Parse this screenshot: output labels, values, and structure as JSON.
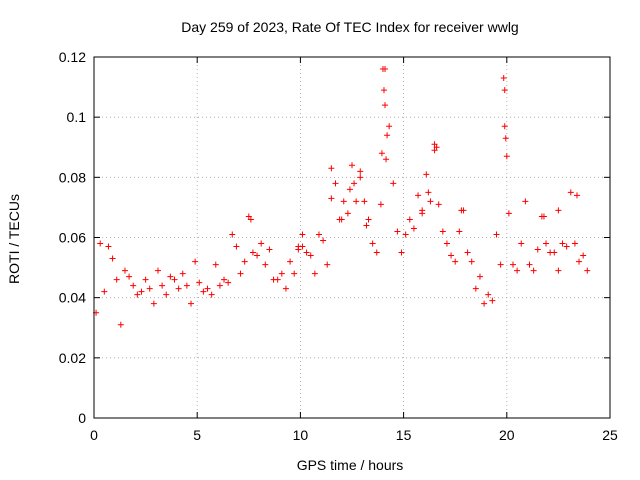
{
  "chart_data": {
    "type": "scatter",
    "title": "Day 259 of 2023, Rate Of TEC Index for receiver wwlg",
    "xlabel": "GPS time / hours",
    "ylabel": "ROTI / TECUs",
    "xlim": [
      0,
      25
    ],
    "ylim": [
      0,
      0.12
    ],
    "x_ticks": [
      0,
      5,
      10,
      15,
      20,
      25
    ],
    "x_tick_labels": [
      "0",
      "5",
      "10",
      "15",
      "20",
      "25"
    ],
    "y_ticks": [
      0,
      0.02,
      0.04,
      0.06,
      0.08,
      0.1,
      0.12
    ],
    "y_tick_labels": [
      "0",
      "0.02",
      "0.04",
      "0.06",
      "0.08",
      "0.1",
      "0.12"
    ],
    "grid": true,
    "marker": "plus",
    "marker_color": "#ff0000",
    "series": [
      {
        "name": "ROTI",
        "x": [
          0.1,
          0.3,
          0.5,
          0.7,
          0.9,
          1.1,
          1.3,
          1.5,
          1.7,
          1.9,
          2.1,
          2.3,
          2.5,
          2.7,
          2.9,
          3.1,
          3.3,
          3.5,
          3.7,
          3.9,
          4.1,
          4.3,
          4.5,
          4.7,
          4.9,
          5.1,
          5.3,
          5.5,
          5.7,
          5.9,
          6.1,
          6.3,
          6.5,
          6.7,
          6.9,
          7.1,
          7.3,
          7.5,
          7.7,
          7.9,
          8.1,
          8.3,
          8.5,
          8.7,
          8.9,
          9.1,
          9.3,
          9.5,
          9.7,
          9.9,
          10.1,
          10.3,
          10.5,
          10.7,
          10.9,
          11.1,
          11.3,
          11.5,
          11.7,
          11.9,
          12.1,
          12.3,
          12.5,
          12.7,
          12.9,
          13.1,
          13.3,
          13.5,
          13.7,
          13.9,
          14.1,
          14.3,
          14.5,
          14.7,
          14.9,
          15.1,
          15.3,
          15.5,
          15.7,
          15.9,
          16.1,
          16.3,
          16.5,
          16.7,
          16.9,
          17.1,
          17.3,
          17.5,
          17.7,
          17.9,
          18.1,
          18.3,
          18.5,
          18.7,
          18.9,
          19.1,
          19.3,
          19.5,
          19.7,
          19.9,
          20.1,
          20.3,
          20.5,
          20.7,
          20.9,
          21.1,
          21.3,
          21.5,
          21.7,
          21.9,
          22.1,
          22.3,
          22.5,
          22.7,
          22.9,
          23.1,
          23.3,
          23.5,
          23.7,
          23.9,
          14.0,
          14.05,
          14.1,
          14.2,
          13.95,
          14.15,
          19.85,
          19.9,
          19.95,
          20.0,
          16.5,
          16.6,
          12.4,
          12.6,
          12.9,
          11.5,
          15.9,
          16.2,
          7.6,
          10.1,
          17.8,
          21.8,
          22.5,
          23.4,
          9.9,
          12.0,
          13.2
        ],
        "y": [
          0.035,
          0.058,
          0.042,
          0.057,
          0.053,
          0.046,
          0.031,
          0.049,
          0.047,
          0.044,
          0.041,
          0.042,
          0.046,
          0.043,
          0.038,
          0.049,
          0.044,
          0.041,
          0.047,
          0.046,
          0.043,
          0.048,
          0.044,
          0.038,
          0.052,
          0.045,
          0.042,
          0.043,
          0.041,
          0.051,
          0.044,
          0.046,
          0.045,
          0.061,
          0.057,
          0.048,
          0.052,
          0.067,
          0.055,
          0.054,
          0.058,
          0.051,
          0.056,
          0.046,
          0.046,
          0.048,
          0.043,
          0.052,
          0.048,
          0.056,
          0.057,
          0.055,
          0.054,
          0.048,
          0.061,
          0.059,
          0.051,
          0.073,
          0.078,
          0.066,
          0.072,
          0.068,
          0.084,
          0.072,
          0.082,
          0.072,
          0.066,
          0.058,
          0.055,
          0.071,
          0.116,
          0.097,
          0.078,
          0.062,
          0.055,
          0.061,
          0.066,
          0.063,
          0.074,
          0.069,
          0.081,
          0.072,
          0.091,
          0.071,
          0.062,
          0.058,
          0.054,
          0.052,
          0.062,
          0.069,
          0.055,
          0.052,
          0.043,
          0.047,
          0.038,
          0.041,
          0.039,
          0.061,
          0.051,
          0.097,
          0.068,
          0.051,
          0.049,
          0.058,
          0.072,
          0.051,
          0.049,
          0.056,
          0.067,
          0.058,
          0.055,
          0.055,
          0.049,
          0.058,
          0.057,
          0.075,
          0.058,
          0.052,
          0.054,
          0.049,
          0.116,
          0.109,
          0.104,
          0.094,
          0.088,
          0.086,
          0.113,
          0.109,
          0.093,
          0.087,
          0.089,
          0.09,
          0.076,
          0.078,
          0.08,
          0.083,
          0.068,
          0.075,
          0.066,
          0.061,
          0.069,
          0.067,
          0.069,
          0.074,
          0.057,
          0.066,
          0.064
        ]
      }
    ]
  }
}
